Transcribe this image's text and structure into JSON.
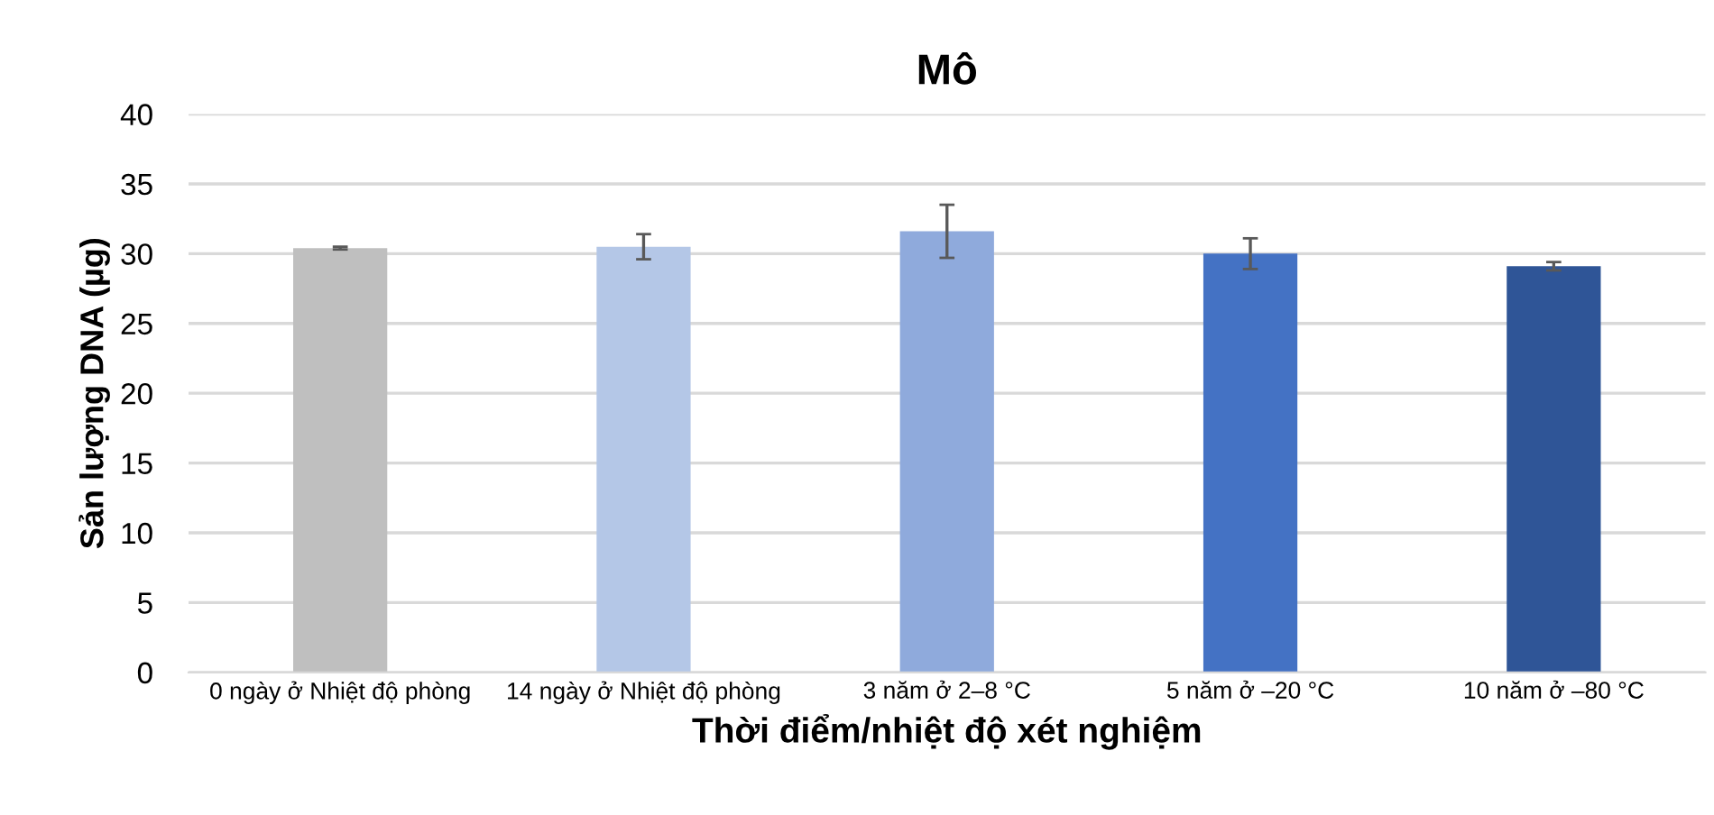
{
  "chart_data": {
    "type": "bar",
    "title": "Mô",
    "xlabel": "Thời điểm/nhiệt độ xét nghiệm",
    "ylabel": "Sản lượng DNA (µg)",
    "categories": [
      "0 ngày ở Nhiệt độ phòng",
      "14 ngày ở Nhiệt độ phòng",
      "3 năm ở 2–8 °C",
      "5 năm ở –20 °C",
      "10 năm ở –80 °C"
    ],
    "values": [
      30.4,
      30.5,
      31.6,
      30.0,
      29.1
    ],
    "errors": [
      0.1,
      0.9,
      1.9,
      1.1,
      0.3
    ],
    "colors": [
      "#bfbfbf",
      "#b4c7e7",
      "#8faadc",
      "#4472c4",
      "#2f5597"
    ],
    "ylim": [
      0,
      40
    ],
    "yticks": [
      0,
      5,
      10,
      15,
      20,
      25,
      30,
      35,
      40
    ],
    "grid": "y",
    "legend": false
  }
}
